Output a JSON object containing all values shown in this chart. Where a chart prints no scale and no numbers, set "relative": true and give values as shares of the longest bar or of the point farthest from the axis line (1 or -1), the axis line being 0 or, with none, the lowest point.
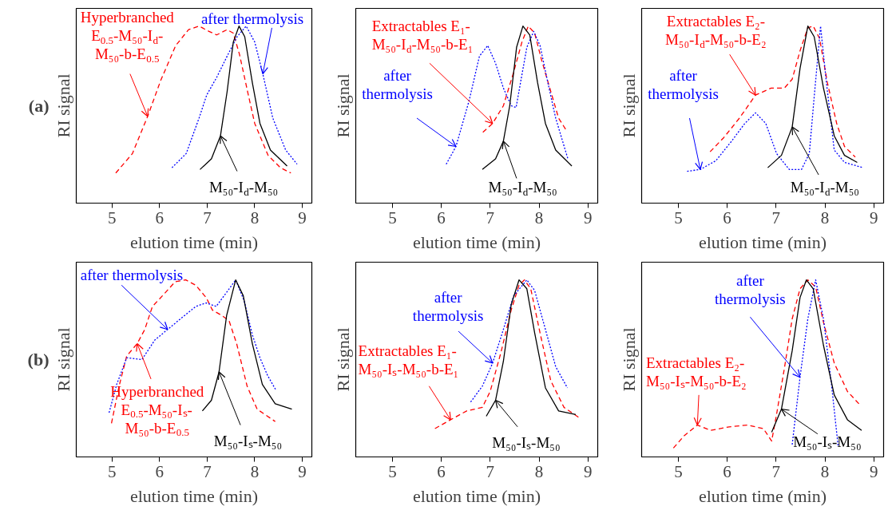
{
  "chart_data": [
    {
      "type": "line",
      "relative": true,
      "xlabel": "elution time (min)",
      "ylabel": "RI signal",
      "xlim": [
        4.25,
        9.2
      ],
      "xticks": [
        5,
        6,
        7,
        8,
        9
      ],
      "annotations": [
        "(a)",
        {
          "text": "Hyperbranched\nE$_{0.5}$-M₅₀-I$_{d}$-\nM₅₀-b-E$_{0.5}$",
          "x": 5.75,
          "y": 0.49
        },
        {
          "text": "after thermolysis",
          "x": 8.17,
          "y": 0.73
        },
        {
          "text": "M₅₀-I$_{d}$-M₅₀",
          "x": 7.28,
          "y": 0.38
        }
      ],
      "series": [
        {
          "color": "#ff0000",
          "line_style": "dashed",
          "x": [
            5.08,
            5.43,
            5.75,
            6.02,
            6.34,
            6.61,
            6.83,
            7.04,
            7.2,
            7.42,
            7.55,
            7.68,
            7.85,
            8.0,
            8.28,
            8.54,
            8.76
          ],
          "values": [
            0.17,
            0.28,
            0.49,
            0.69,
            0.89,
            0.98,
            1.0,
            0.97,
            0.95,
            0.98,
            0.96,
            0.84,
            0.63,
            0.45,
            0.27,
            0.2,
            0.17
          ]
        },
        {
          "color": "#0000ff",
          "line_style": "dotted",
          "x": [
            6.26,
            6.56,
            6.83,
            6.99,
            7.2,
            7.42,
            7.63,
            7.82,
            8.0,
            8.17,
            8.38,
            8.65,
            8.89
          ],
          "values": [
            0.2,
            0.28,
            0.48,
            0.61,
            0.71,
            0.83,
            0.94,
            1.0,
            0.91,
            0.73,
            0.48,
            0.3,
            0.22
          ]
        },
        {
          "color": "#000000",
          "line_style": "solid",
          "x": [
            6.85,
            7.09,
            7.28,
            7.42,
            7.55,
            7.67,
            7.79,
            7.95,
            8.11,
            8.33,
            8.68
          ],
          "values": [
            0.19,
            0.25,
            0.38,
            0.63,
            0.91,
            1.0,
            0.94,
            0.68,
            0.45,
            0.3,
            0.21
          ]
        }
      ]
    },
    {
      "type": "line",
      "relative": true,
      "xlabel": "elution time (min)",
      "ylabel": "RI signal",
      "xlim": [
        4.25,
        9.2
      ],
      "xticks": [
        5,
        6,
        7,
        8,
        9
      ],
      "annotations": [
        {
          "text": "Extractables E₁-\nM₅₀-I$_{d}$-M₅₀-b-E₁",
          "x": 7.05,
          "y": 0.45
        },
        {
          "text": "after\nthermolysis",
          "x": 6.3,
          "y": 0.32
        },
        {
          "text": "M₅₀-I$_{d}$-M₅₀",
          "x": 7.27,
          "y": 0.35
        }
      ],
      "series": [
        {
          "color": "#ff0000",
          "line_style": "dashed",
          "x": [
            6.85,
            7.05,
            7.27,
            7.48,
            7.65,
            7.78,
            7.91,
            8.05,
            8.24,
            8.4,
            8.56
          ],
          "values": [
            0.4,
            0.45,
            0.55,
            0.74,
            0.91,
            1.0,
            0.96,
            0.81,
            0.63,
            0.48,
            0.41
          ]
        },
        {
          "color": "#0000ff",
          "line_style": "dotted",
          "x": [
            6.1,
            6.3,
            6.57,
            6.78,
            6.95,
            7.11,
            7.27,
            7.43,
            7.53,
            7.62,
            7.75,
            7.89,
            8.02,
            8.18,
            8.34,
            8.59
          ],
          "values": [
            0.22,
            0.32,
            0.58,
            0.83,
            0.89,
            0.79,
            0.65,
            0.55,
            0.54,
            0.68,
            0.88,
            0.97,
            0.89,
            0.68,
            0.48,
            0.25
          ]
        },
        {
          "color": "#000000",
          "line_style": "solid",
          "x": [
            6.84,
            7.11,
            7.27,
            7.4,
            7.54,
            7.67,
            7.81,
            7.97,
            8.13,
            8.34,
            8.67
          ],
          "values": [
            0.19,
            0.25,
            0.35,
            0.55,
            0.88,
            1.0,
            0.95,
            0.68,
            0.45,
            0.3,
            0.21
          ]
        }
      ]
    },
    {
      "type": "line",
      "relative": true,
      "xlabel": "elution time (min)",
      "ylabel": "RI signal",
      "xlim": [
        4.25,
        9.2
      ],
      "xticks": [
        5,
        6,
        7,
        8,
        9
      ],
      "annotations": [
        {
          "text": "Extractables E₂-\nM₅₀-I$_{d}$-M₅₀-b-E₂",
          "x": 6.58,
          "y": 0.61
        },
        {
          "text": "after\nthermolysis",
          "x": 5.45,
          "y": 0.19
        },
        {
          "text": "M₅₀-I$_{d}$-M₅₀",
          "x": 7.33,
          "y": 0.43
        }
      ],
      "series": [
        {
          "color": "#ff0000",
          "line_style": "dashed",
          "x": [
            5.65,
            5.93,
            6.25,
            6.58,
            6.9,
            7.17,
            7.33,
            7.49,
            7.65,
            7.76,
            7.89,
            8.05,
            8.24,
            8.4,
            8.62
          ],
          "values": [
            0.29,
            0.37,
            0.48,
            0.61,
            0.65,
            0.65,
            0.7,
            0.86,
            0.99,
            1.0,
            0.93,
            0.68,
            0.45,
            0.32,
            0.26
          ]
        },
        {
          "color": "#0000ff",
          "line_style": "dotted",
          "x": [
            5.18,
            5.45,
            5.77,
            6.09,
            6.36,
            6.58,
            6.79,
            7.01,
            7.27,
            7.52,
            7.68,
            7.78,
            7.91,
            8.03,
            8.19,
            8.4,
            8.78
          ],
          "values": [
            0.18,
            0.19,
            0.24,
            0.35,
            0.45,
            0.51,
            0.45,
            0.28,
            0.19,
            0.19,
            0.28,
            0.6,
            1.0,
            0.68,
            0.3,
            0.23,
            0.2
          ]
        },
        {
          "color": "#000000",
          "line_style": "solid",
          "x": [
            6.83,
            7.11,
            7.33,
            7.49,
            7.65,
            7.78,
            7.97,
            8.19,
            8.4,
            8.66
          ],
          "values": [
            0.2,
            0.27,
            0.43,
            0.76,
            1.0,
            0.94,
            0.65,
            0.38,
            0.27,
            0.23
          ]
        }
      ]
    },
    {
      "type": "line",
      "relative": true,
      "xlabel": "elution time (min)",
      "ylabel": "RI signal",
      "xlim": [
        4.25,
        9.2
      ],
      "xticks": [
        5,
        6,
        7,
        8,
        9
      ],
      "annotations": [
        "(b)",
        {
          "text": "Hyperbranched\nE$_{0.5}$-M₅₀-Iₛ-\nM₅₀-b-E$_{0.5}$",
          "x": 5.53,
          "y": 0.64
        },
        {
          "text": "after thermolysis",
          "x": 6.17,
          "y": 0.72
        },
        {
          "text": "M₅₀-Iₛ-M₅₀",
          "x": 7.25,
          "y": 0.48
        }
      ],
      "series": [
        {
          "color": "#ff0000",
          "line_style": "dashed",
          "x": [
            4.99,
            5.15,
            5.31,
            5.53,
            5.69,
            5.85,
            6.06,
            6.33,
            6.55,
            6.76,
            6.98,
            7.11,
            7.3,
            7.46,
            7.62,
            7.84,
            8.05,
            8.43
          ],
          "values": [
            0.19,
            0.4,
            0.57,
            0.64,
            0.72,
            0.85,
            0.91,
            0.99,
            1.0,
            0.97,
            0.9,
            0.83,
            0.8,
            0.77,
            0.64,
            0.4,
            0.27,
            0.2
          ]
        },
        {
          "color": "#0000ff",
          "line_style": "dotted",
          "x": [
            4.94,
            5.1,
            5.31,
            5.63,
            5.9,
            6.17,
            6.44,
            6.76,
            6.98,
            7.19,
            7.41,
            7.6,
            7.78,
            7.95,
            8.11,
            8.27,
            8.44
          ],
          "values": [
            0.25,
            0.41,
            0.56,
            0.55,
            0.66,
            0.72,
            0.78,
            0.85,
            0.87,
            0.85,
            0.93,
            1.0,
            0.88,
            0.69,
            0.56,
            0.46,
            0.38
          ]
        },
        {
          "color": "#000000",
          "line_style": "solid",
          "x": [
            6.9,
            7.09,
            7.25,
            7.41,
            7.6,
            7.76,
            7.95,
            8.16,
            8.43,
            8.78
          ],
          "values": [
            0.26,
            0.32,
            0.48,
            0.8,
            1.0,
            0.91,
            0.64,
            0.41,
            0.3,
            0.27
          ]
        }
      ]
    },
    {
      "type": "line",
      "relative": true,
      "xlabel": "elution time (min)",
      "ylabel": "RI signal",
      "xlim": [
        4.25,
        9.2
      ],
      "xticks": [
        5,
        6,
        7,
        8,
        9
      ],
      "annotations": [
        {
          "text": "Extractables E₁-\nM₅₀-Iₛ-M₅₀-b-E₁",
          "x": 6.19,
          "y": 0.21
        },
        {
          "text": "after\nthermolysis",
          "x": 7.05,
          "y": 0.53
        },
        {
          "text": "M₅₀-Iₛ-M₅₀",
          "x": 7.11,
          "y": 0.32
        }
      ],
      "series": [
        {
          "color": "#ff0000",
          "line_style": "dashed",
          "x": [
            5.87,
            6.19,
            6.52,
            6.84,
            7.0,
            7.22,
            7.43,
            7.59,
            7.7,
            7.83,
            8.02,
            8.24,
            8.51,
            8.83
          ],
          "values": [
            0.16,
            0.21,
            0.26,
            0.28,
            0.37,
            0.59,
            0.83,
            0.97,
            1.0,
            0.95,
            0.7,
            0.43,
            0.28,
            0.22
          ]
        },
        {
          "color": "#0000ff",
          "line_style": "dotted",
          "x": [
            6.6,
            6.84,
            7.05,
            7.27,
            7.48,
            7.75,
            7.91,
            8.13,
            8.34,
            8.58
          ],
          "values": [
            0.31,
            0.4,
            0.53,
            0.72,
            0.91,
            1.0,
            0.94,
            0.72,
            0.51,
            0.39
          ]
        },
        {
          "color": "#000000",
          "line_style": "solid",
          "x": [
            6.92,
            7.11,
            7.27,
            7.43,
            7.59,
            7.75,
            7.91,
            8.13,
            8.4,
            8.75
          ],
          "values": [
            0.23,
            0.32,
            0.54,
            0.86,
            1.0,
            0.95,
            0.7,
            0.39,
            0.26,
            0.24
          ]
        }
      ]
    },
    {
      "type": "line",
      "relative": true,
      "xlabel": "elution time (min)",
      "ylabel": "RI signal",
      "xlim": [
        4.25,
        9.2
      ],
      "xticks": [
        5,
        6,
        7,
        8,
        9
      ],
      "annotations": [
        {
          "text": "Extractables E₂-\nM₅₀-Iₛ-M₅₀-b-E₂",
          "x": 5.39,
          "y": 0.18
        },
        {
          "text": "after\nthermolysis",
          "x": 7.49,
          "y": 0.45
        },
        {
          "text": "M₅₀-Iₛ-M₅₀",
          "x": 7.11,
          "y": 0.27
        }
      ],
      "series": [
        {
          "color": "#ff0000",
          "line_style": "dashed",
          "x": [
            4.9,
            5.12,
            5.39,
            5.66,
            6.04,
            6.41,
            6.74,
            6.91,
            7.01,
            7.17,
            7.33,
            7.49,
            7.65,
            7.81,
            7.97,
            8.19,
            8.46,
            8.73
          ],
          "values": [
            0.05,
            0.12,
            0.18,
            0.15,
            0.17,
            0.18,
            0.16,
            0.09,
            0.24,
            0.5,
            0.78,
            0.95,
            1.0,
            0.96,
            0.76,
            0.53,
            0.37,
            0.29
          ]
        },
        {
          "color": "#0000ff",
          "line_style": "dotted",
          "x": [
            7.33,
            7.49,
            7.65,
            7.81,
            7.97,
            8.13,
            8.27
          ],
          "values": [
            0.07,
            0.45,
            0.78,
            1.0,
            0.78,
            0.42,
            0.06
          ]
        },
        {
          "color": "#000000",
          "line_style": "solid",
          "x": [
            6.91,
            7.11,
            7.33,
            7.49,
            7.62,
            7.76,
            7.97,
            8.19,
            8.46,
            8.75
          ],
          "values": [
            0.14,
            0.27,
            0.6,
            0.9,
            1.0,
            0.95,
            0.63,
            0.35,
            0.21,
            0.15
          ]
        }
      ]
    }
  ]
}
